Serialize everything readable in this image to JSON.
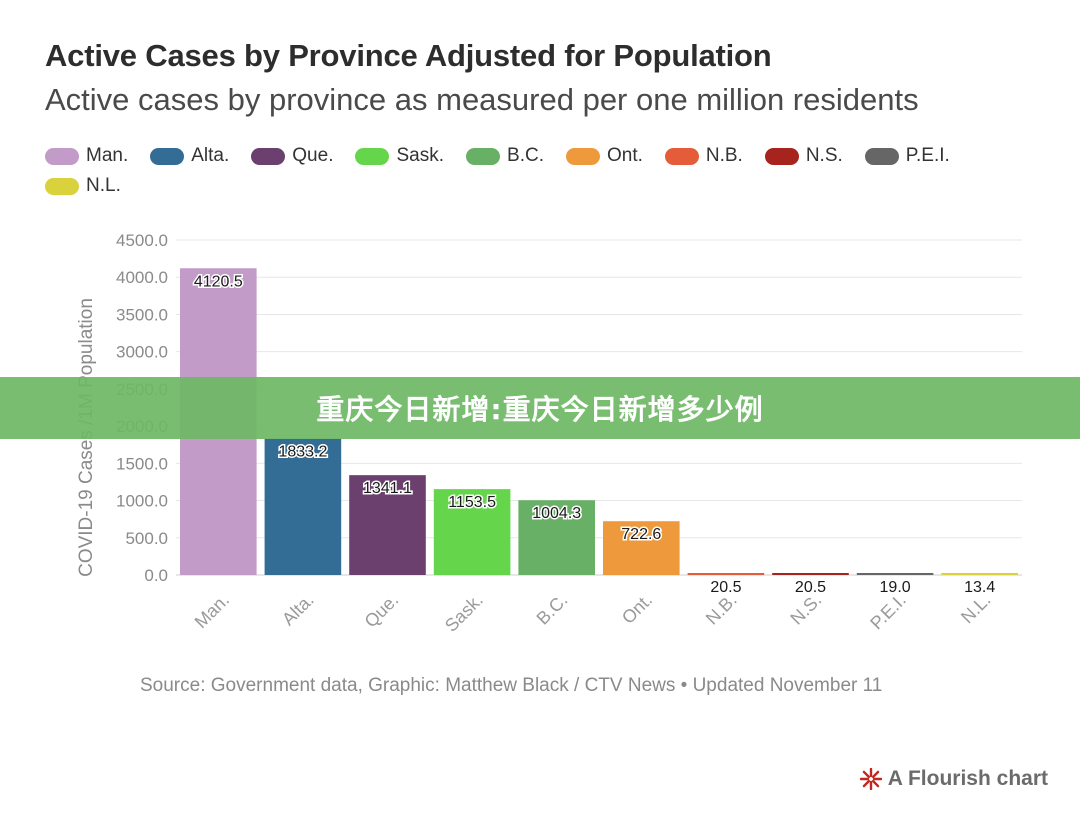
{
  "chart_data": {
    "type": "bar",
    "title": "Active Cases by Province Adjusted for Population",
    "subtitle": "Active cases by province as measured per one million residents",
    "ylabel": "COVID-19 Cases /1M Population",
    "xlabel": "",
    "ylim": [
      0,
      4500
    ],
    "yticks": [
      "0.0",
      "500.0",
      "1000.0",
      "1500.0",
      "2000.0",
      "2500.0",
      "3000.0",
      "3500.0",
      "4000.0",
      "4500.0"
    ],
    "grid": true,
    "legend_placement": "top",
    "categories": [
      "Man.",
      "Alta.",
      "Que.",
      "Sask.",
      "B.C.",
      "Ont.",
      "N.B.",
      "N.S.",
      "P.E.I.",
      "N.L."
    ],
    "values": [
      4120.5,
      1833.2,
      1341.1,
      1153.5,
      1004.3,
      722.6,
      20.5,
      20.5,
      19.0,
      13.4
    ],
    "value_labels": [
      "4120.5",
      "1833.2",
      "1341.1",
      "1153.5",
      "1004.3",
      "722.6",
      "20.5",
      "20.5",
      "19.0",
      "13.4"
    ],
    "colors": [
      "#c39bc9",
      "#336d96",
      "#6b3f6e",
      "#65d64b",
      "#67b065",
      "#ee9a3c",
      "#e45c3a",
      "#a6241d",
      "#666666",
      "#d9d23c"
    ]
  },
  "banner": {
    "text": "重庆今日新增:重庆今日新增多少例"
  },
  "footer": {
    "source": "Source: Government data, Graphic: Matthew Black / CTV News • Updated November 11",
    "credit": "A Flourish chart",
    "credit_icon": "flourish-logo-icon",
    "credit_color": "#c2271f"
  }
}
